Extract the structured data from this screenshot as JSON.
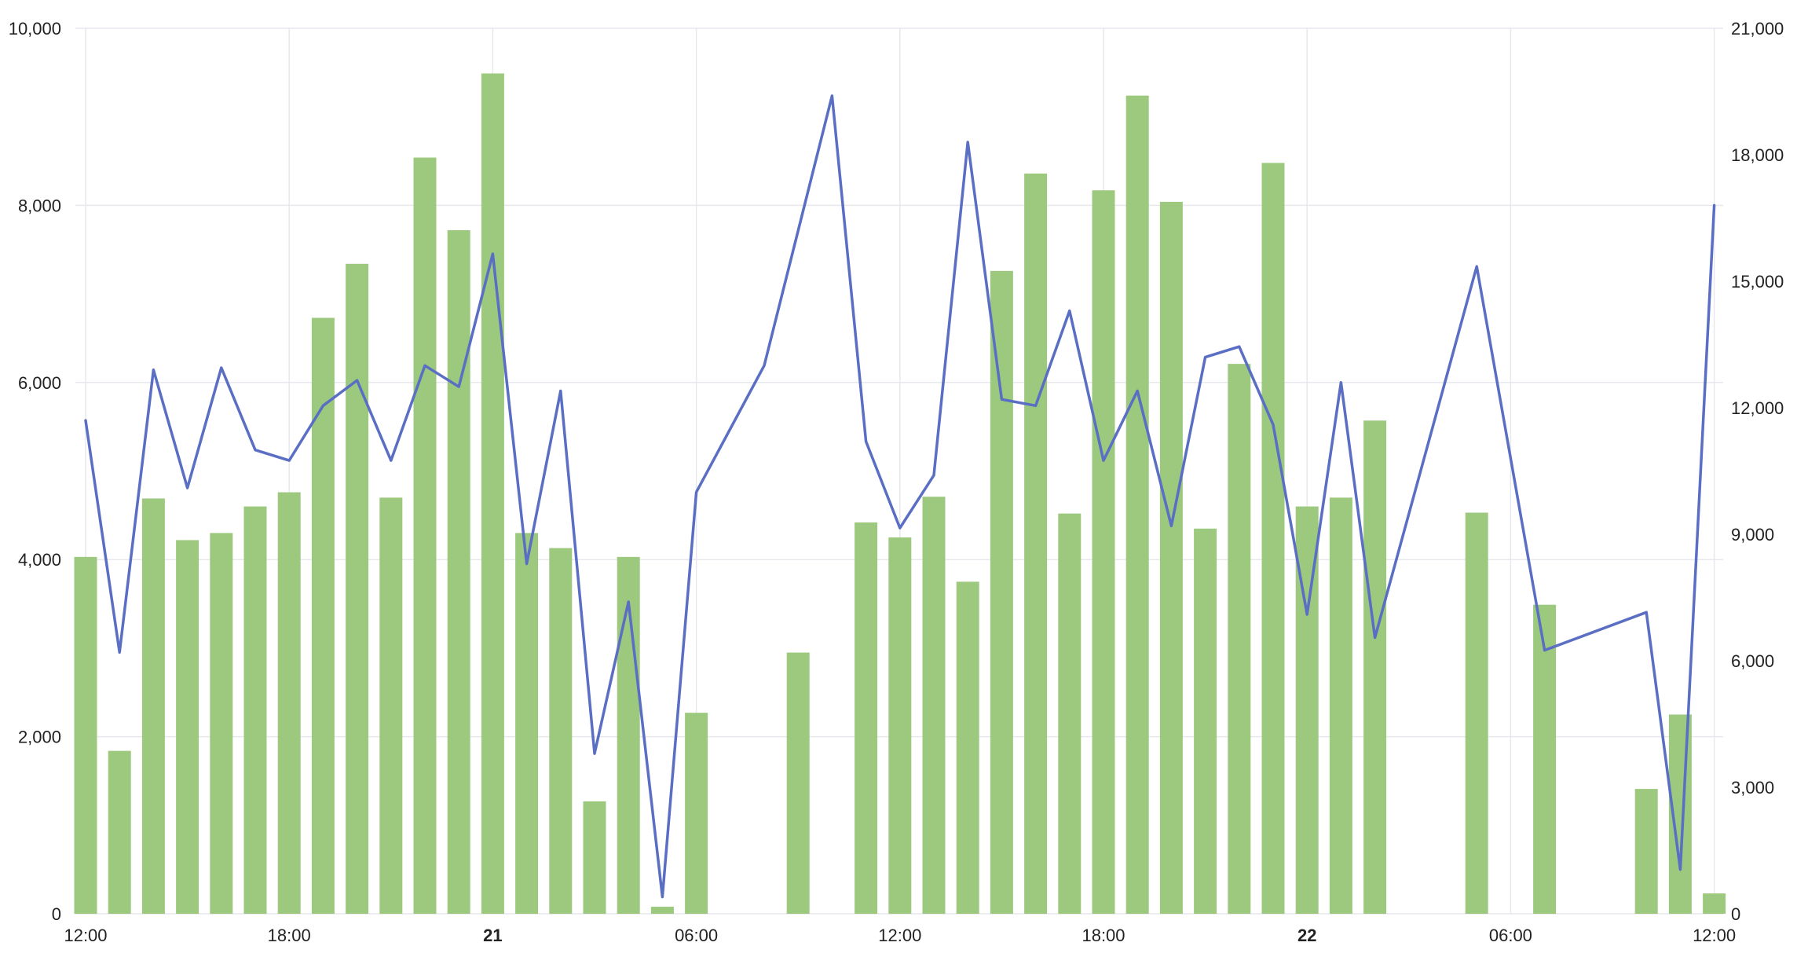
{
  "chart_data": {
    "type": "bar+line",
    "title": "",
    "grid": true,
    "legend": "none",
    "colors": {
      "bars": "#9dc97f",
      "line": "#5a6ec4",
      "grid": "#e6e8ee",
      "text": "#222222"
    },
    "x_axis": {
      "start": "20 12:00",
      "end": "22 12:00",
      "step_hours": 1,
      "tick_labels": [
        {
          "hour": 0,
          "label": "12:00",
          "bold": false
        },
        {
          "hour": 6,
          "label": "18:00",
          "bold": false
        },
        {
          "hour": 12,
          "label": "21",
          "bold": true
        },
        {
          "hour": 18,
          "label": "06:00",
          "bold": false
        },
        {
          "hour": 24,
          "label": "12:00",
          "bold": false
        },
        {
          "hour": 30,
          "label": "18:00",
          "bold": false
        },
        {
          "hour": 36,
          "label": "22",
          "bold": true
        },
        {
          "hour": 42,
          "label": "06:00",
          "bold": false
        },
        {
          "hour": 48,
          "label": "12:00",
          "bold": false
        }
      ]
    },
    "y_left": {
      "min": 0,
      "max": 10000,
      "ticks": [
        0,
        2000,
        4000,
        6000,
        8000,
        10000
      ],
      "tick_labels": [
        "0",
        "2,000",
        "4,000",
        "6,000",
        "8,000",
        "10,000"
      ]
    },
    "y_right": {
      "min": 0,
      "max": 21000,
      "ticks": [
        0,
        3000,
        6000,
        9000,
        12000,
        15000,
        18000,
        21000
      ],
      "tick_labels": [
        "0",
        "3,000",
        "6,000",
        "9,000",
        "12,000",
        "15,000",
        "18,000",
        "21,000"
      ]
    },
    "bars": {
      "axis": "left",
      "hours": [
        0,
        1,
        2,
        3,
        4,
        5,
        6,
        7,
        8,
        9,
        10,
        11,
        12,
        13,
        14,
        15,
        16,
        17,
        18,
        19,
        21,
        23,
        24,
        25,
        26,
        27,
        28,
        29,
        30,
        31,
        32,
        33,
        34,
        35,
        36,
        37,
        38,
        41,
        43,
        46,
        47,
        48
      ],
      "values": [
        4030,
        1840,
        4690,
        4220,
        4300,
        4600,
        4760,
        6730,
        7340,
        4700,
        8540,
        7720,
        9490,
        4300,
        4130,
        1270,
        4030,
        80,
        2270,
        0,
        2950,
        4420,
        4250,
        4710,
        3750,
        7260,
        8360,
        4520,
        8170,
        9240,
        8040,
        4350,
        6210,
        8480,
        4600,
        4700,
        5570,
        4530,
        3490,
        1410,
        2250,
        230
      ]
    },
    "line": {
      "axis": "right",
      "hours": [
        0,
        1,
        2,
        3,
        4,
        5,
        6,
        7,
        8,
        9,
        10,
        11,
        12,
        13,
        14,
        15,
        16,
        17,
        18,
        20,
        22,
        23,
        24,
        25,
        26,
        27,
        28,
        29,
        30,
        31,
        32,
        33,
        34,
        35,
        36,
        37,
        38,
        41,
        43,
        46,
        47,
        48
      ],
      "values": [
        11700,
        6200,
        12900,
        10100,
        12950,
        11000,
        10750,
        12050,
        12650,
        10750,
        13000,
        12500,
        15650,
        8300,
        12400,
        3800,
        7400,
        400,
        10000,
        13000,
        19400,
        11200,
        9150,
        10400,
        18300,
        12200,
        12050,
        14300,
        10750,
        12400,
        9200,
        13200,
        13450,
        11600,
        7100,
        12600,
        6550,
        15350,
        6250,
        7150,
        1050,
        16800
      ]
    }
  }
}
